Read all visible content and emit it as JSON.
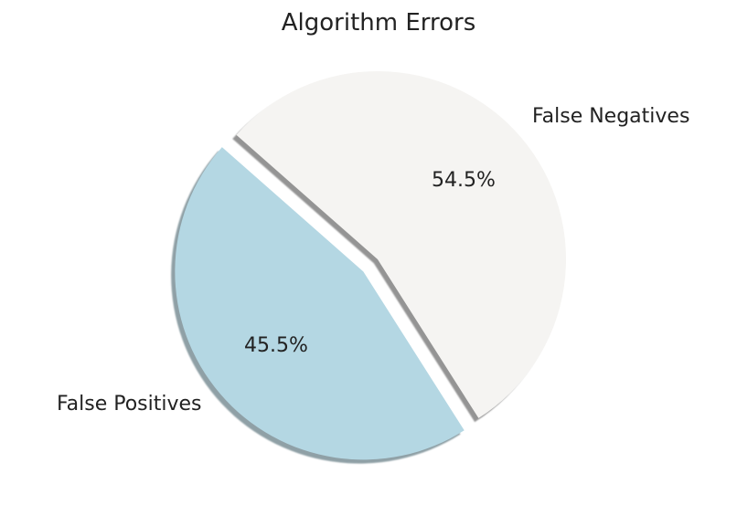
{
  "chart_data": {
    "type": "pie",
    "title": "Algorithm Errors",
    "slices": [
      {
        "label": "False Negatives",
        "value": 54.5,
        "pct_label": "54.5%",
        "color": "#f5f4f2",
        "shadow_color": "#949494",
        "explode": 0
      },
      {
        "label": "False Positives",
        "value": 45.5,
        "pct_label": "45.5%",
        "color": "#b4d7e3",
        "shadow_color": "#8fa0a6",
        "explode": 0.1
      }
    ],
    "startangle": -57.6,
    "direction": "counterclockwise",
    "shadow": true,
    "legend": false,
    "background_color": "#ffffff",
    "text_color": "#222222"
  }
}
